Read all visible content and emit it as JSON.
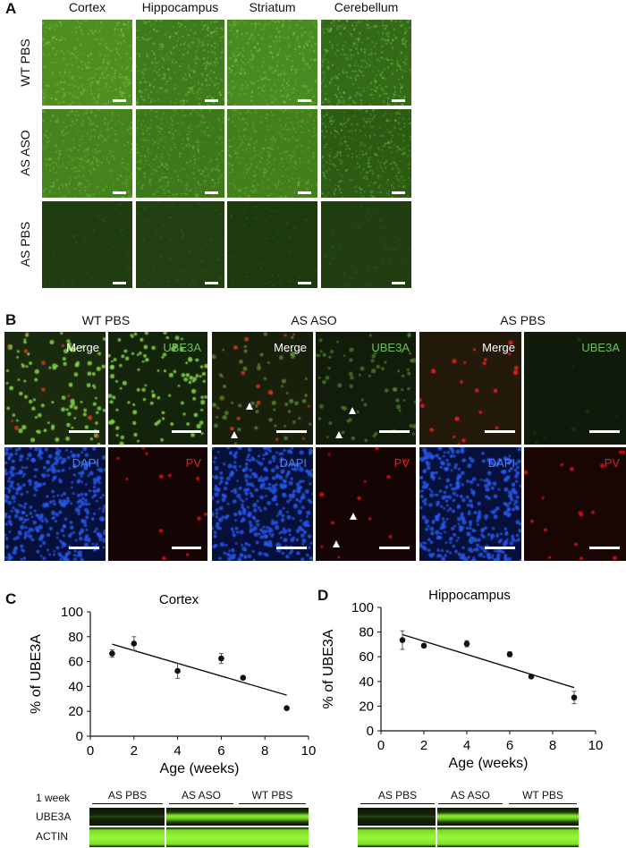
{
  "panel_a": {
    "label": "A",
    "columns": [
      "Cortex",
      "Hippocampus",
      "Striatum",
      "Cerebellum"
    ],
    "rows": [
      "WT PBS",
      "AS ASO",
      "AS PBS"
    ]
  },
  "panel_b": {
    "label": "B",
    "groups": [
      "WT PBS",
      "AS ASO",
      "AS PBS"
    ],
    "channels_top": [
      "Merge",
      "UBE3A"
    ],
    "channels_bottom": [
      "DAPI",
      "PV"
    ],
    "colors": {
      "merge": "#ffffff",
      "ube3a": "#6fbf5a",
      "dapi": "#4a7ff0",
      "pv": "#e02020"
    }
  },
  "chart_data": [
    {
      "panel_label": "C",
      "type": "scatter",
      "title": "Cortex",
      "xlabel": "Age (weeks)",
      "ylabel": "% of UBE3A",
      "xlim": [
        0,
        10
      ],
      "ylim": [
        0,
        100
      ],
      "xticks": [
        0,
        2,
        4,
        6,
        8,
        10
      ],
      "yticks": [
        0,
        20,
        40,
        60,
        80,
        100
      ],
      "x": [
        1,
        2,
        4,
        6,
        7,
        9
      ],
      "y": [
        66.5,
        74.5,
        52.5,
        62.5,
        47,
        22.5
      ],
      "error": [
        3,
        5.5,
        6,
        4,
        1,
        1
      ],
      "trendline": {
        "x": [
          1,
          9
        ],
        "y": [
          74,
          33
        ]
      },
      "grid": false
    },
    {
      "panel_label": "D",
      "type": "scatter",
      "title": "Hippocampus",
      "xlabel": "Age (weeks)",
      "ylabel": "% of UBE3A",
      "xlim": [
        0,
        10
      ],
      "ylim": [
        0,
        100
      ],
      "xticks": [
        0,
        2,
        4,
        6,
        8,
        10
      ],
      "yticks": [
        0,
        20,
        40,
        60,
        80,
        100
      ],
      "x": [
        1,
        2,
        4,
        6,
        7,
        9
      ],
      "y": [
        73.5,
        69,
        70.5,
        62,
        44,
        27
      ],
      "error": [
        7.5,
        1.5,
        2.5,
        2,
        1.5,
        5
      ],
      "trendline": {
        "x": [
          1,
          9
        ],
        "y": [
          78,
          35
        ]
      },
      "grid": false
    }
  ],
  "blots": {
    "timepoint": "1 week",
    "rows": [
      "UBE3A",
      "ACTIN"
    ],
    "groups": [
      "AS PBS",
      "AS ASO",
      "WT PBS"
    ]
  }
}
